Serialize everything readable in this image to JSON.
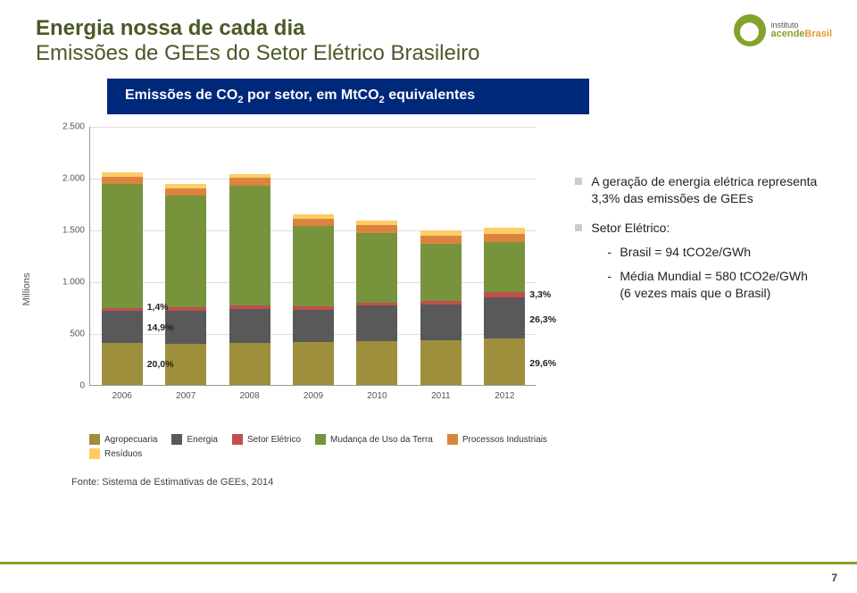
{
  "page_number": "7",
  "title_line1": "Energia nossa de cada dia",
  "title_line2": "Emissões de GEEs do Setor Elétrico Brasileiro",
  "title_color": "#4a5a28",
  "title_fontsize": 24,
  "banner_html": "Emissões de CO<sub>2</sub> por setor, em MtCO<sub>2</sub> equivalentes",
  "banner_bg": "#00287a",
  "yaxis_label": "Millions",
  "logo": {
    "line1": "instituto",
    "brand1": "acende",
    "brand2": "Brasil"
  },
  "chart": {
    "type": "stacked-bar",
    "ylim": [
      0,
      2500
    ],
    "yticks": [
      0,
      500,
      1000,
      1500,
      2000,
      2500
    ],
    "ytick_labels": [
      "0",
      "500",
      "1.000",
      "1.500",
      "2.000",
      "2.500"
    ],
    "categories": [
      "2006",
      "2007",
      "2008",
      "2009",
      "2010",
      "2011",
      "2012"
    ],
    "series": [
      {
        "name": "Agropecuaria",
        "color": "#9e8f3c"
      },
      {
        "name": "Energia",
        "color": "#595959"
      },
      {
        "name": "Setor Elétrico",
        "color": "#c0504d"
      },
      {
        "name": "Mudança de Uso da Terra",
        "color": "#77933c"
      },
      {
        "name": "Processos Industriais",
        "color": "#db843d"
      },
      {
        "name": "Resíduos",
        "color": "#ffcc66"
      }
    ],
    "values_by_category": [
      [
        410,
        305,
        29,
        1200,
        68,
        38
      ],
      [
        400,
        320,
        30,
        1080,
        72,
        40
      ],
      [
        405,
        330,
        31,
        1160,
        72,
        40
      ],
      [
        415,
        315,
        27,
        780,
        70,
        42
      ],
      [
        425,
        340,
        32,
        670,
        75,
        44
      ],
      [
        430,
        345,
        33,
        560,
        77,
        45
      ],
      [
        450,
        400,
        50,
        480,
        80,
        60
      ]
    ],
    "pct_labels": [
      {
        "text": "1,4%",
        "col": 0,
        "y_val": 760
      },
      {
        "text": "14,9%",
        "col": 0,
        "y_val": 560
      },
      {
        "text": "20,0%",
        "col": 0,
        "y_val": 210
      },
      {
        "text": "3,3%",
        "col": 6,
        "y_val": 880
      },
      {
        "text": "26,3%",
        "col": 6,
        "y_val": 640
      },
      {
        "text": "29,6%",
        "col": 6,
        "y_val": 220
      }
    ],
    "grid_color": "#dddddd",
    "axis_color": "#999999"
  },
  "bullets": {
    "b1": "A geração de energia elétrica representa 3,3% das emissões de GEEs",
    "b2": "Setor Elétrico:",
    "b2a": "Brasil = 94 tCO2e/GWh",
    "b2b": "Média Mundial = 580 tCO2e/GWh (6 vezes mais que o Brasil)"
  },
  "source": "Fonte: Sistema de Estimativas de GEEs, 2014"
}
